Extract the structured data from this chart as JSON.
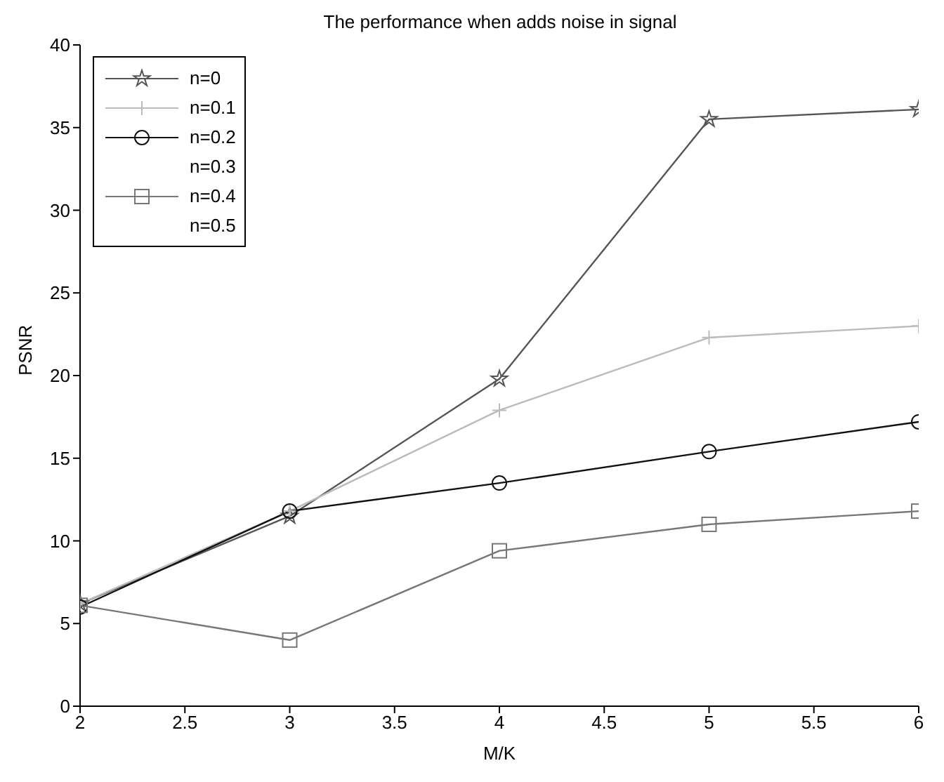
{
  "chart_data": {
    "type": "line",
    "title": "The performance when adds noise in signal",
    "xlabel": "M/K",
    "ylabel": "PSNR",
    "x": [
      2,
      3,
      4,
      5,
      6
    ],
    "series": [
      {
        "name": "n=0",
        "color": "#555555",
        "marker": "star",
        "values": [
          6.2,
          11.5,
          19.8,
          35.5,
          36.1
        ]
      },
      {
        "name": "n=0.1",
        "color": "#bbbbbb",
        "marker": "cross",
        "values": [
          6.2,
          11.8,
          17.9,
          22.3,
          23.0
        ]
      },
      {
        "name": "n=0.2",
        "color": "#111111",
        "marker": "circle",
        "values": [
          6.0,
          11.8,
          13.5,
          15.4,
          17.2
        ]
      },
      {
        "name": "n=0.3",
        "values": [
          null,
          null,
          null,
          null,
          null
        ]
      },
      {
        "name": "n=0.4",
        "color": "#777777",
        "marker": "square",
        "values": [
          6.1,
          4.0,
          9.4,
          11.0,
          11.8
        ]
      },
      {
        "name": "n=0.5",
        "values": [
          null,
          null,
          null,
          null,
          null
        ]
      }
    ],
    "xlim": [
      2,
      6
    ],
    "xticks": [
      2,
      2.5,
      3,
      3.5,
      4,
      4.5,
      5,
      5.5,
      6
    ],
    "ylim": [
      0,
      40
    ],
    "yticks": [
      0,
      5,
      10,
      15,
      20,
      25,
      30,
      35,
      40
    ],
    "legend": "top left",
    "line_style": "solid"
  }
}
